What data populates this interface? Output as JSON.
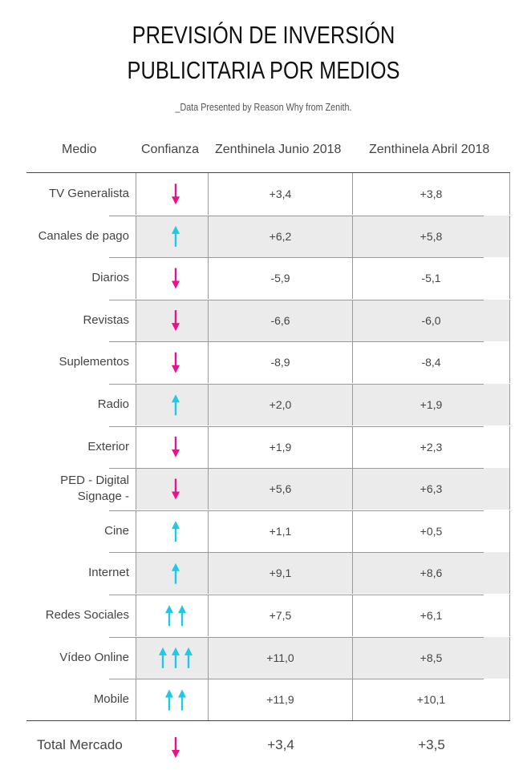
{
  "chart_data": {
    "type": "table",
    "title_lines": [
      "PREVISIÓN DE INVERSIÓN",
      "PUBLICITARIA POR MEDIOS"
    ],
    "subtitle": "_Data Presented by Reason Why from Zenith.",
    "columns": [
      "Medio",
      "Confianza",
      "Zenthinela Junio 2018",
      "Zenthinela Abril 2018"
    ],
    "colors": {
      "down": "#ec0f8c",
      "up": "#1ec8e6"
    },
    "rows": [
      {
        "medio": "TV Generalista",
        "confianza": "down",
        "arrows": 1,
        "junio": "+3,4",
        "abril": "+3,8"
      },
      {
        "medio": "Canales de pago",
        "confianza": "up",
        "arrows": 1,
        "junio": "+6,2",
        "abril": "+5,8"
      },
      {
        "medio": "Diarios",
        "confianza": "down",
        "arrows": 1,
        "junio": "-5,9",
        "abril": "-5,1"
      },
      {
        "medio": "Revistas",
        "confianza": "down",
        "arrows": 1,
        "junio": "-6,6",
        "abril": "-6,0"
      },
      {
        "medio": "Suplementos",
        "confianza": "down",
        "arrows": 1,
        "junio": "-8,9",
        "abril": "-8,4"
      },
      {
        "medio": "Radio",
        "confianza": "up",
        "arrows": 1,
        "junio": "+2,0",
        "abril": "+1,9"
      },
      {
        "medio": "Exterior",
        "confianza": "down",
        "arrows": 1,
        "junio": "+1,9",
        "abril": "+2,3"
      },
      {
        "medio": "PED - Digital\nSignage -",
        "confianza": "down",
        "arrows": 1,
        "junio": "+5,6",
        "abril": "+6,3"
      },
      {
        "medio": "Cine",
        "confianza": "up",
        "arrows": 1,
        "junio": "+1,1",
        "abril": "+0,5"
      },
      {
        "medio": "Internet",
        "confianza": "up",
        "arrows": 1,
        "junio": "+9,1",
        "abril": "+8,6"
      },
      {
        "medio": "Redes Sociales",
        "confianza": "up",
        "arrows": 2,
        "junio": "+7,5",
        "abril": "+6,1"
      },
      {
        "medio": "Vídeo Online",
        "confianza": "up",
        "arrows": 3,
        "junio": "+11,0",
        "abril": "+8,5"
      },
      {
        "medio": "Mobile",
        "confianza": "up",
        "arrows": 2,
        "junio": "+11,9",
        "abril": "+10,1"
      }
    ],
    "total": {
      "medio": "Total Mercado",
      "confianza": "down",
      "arrows": 1,
      "junio": "+3,4",
      "abril": "+3,5"
    }
  }
}
